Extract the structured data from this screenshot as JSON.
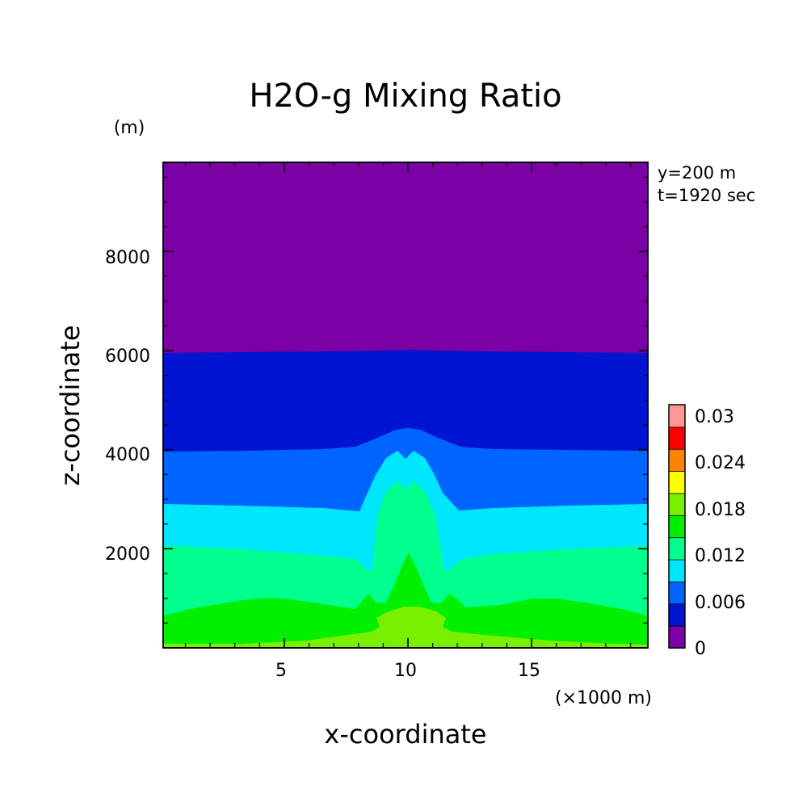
{
  "chart_data": {
    "type": "heatmap",
    "title": "H2O-g Mixing Ratio",
    "xlabel": "x-coordinate",
    "ylabel": "z-coordinate",
    "x_unit": "(×1000 m)",
    "y_unit": "(m)",
    "annotations": [
      "y=200 m",
      "t=1920 sec"
    ],
    "xlim": [
      0.1,
      19.7
    ],
    "ylim": [
      0,
      9800
    ],
    "x_ticks": [
      5,
      10,
      15
    ],
    "x_tick_labels": [
      "5",
      "10",
      "15"
    ],
    "y_ticks": [
      2000,
      4000,
      6000,
      8000
    ],
    "y_tick_labels": [
      "2000",
      "4000",
      "6000",
      "8000"
    ],
    "colorbar": {
      "levels": [
        0,
        0.003,
        0.006,
        0.009,
        0.012,
        0.015,
        0.018,
        0.021,
        0.024,
        0.027,
        0.03,
        0.033
      ],
      "colors": [
        "#7b00a5",
        "#0014d2",
        "#0064ff",
        "#00e6ff",
        "#00ff8c",
        "#00f000",
        "#78f000",
        "#ffff00",
        "#ff8200",
        "#ff0000",
        "#ff9696"
      ],
      "tick_values": [
        0,
        0.006,
        0.012,
        0.018,
        0.024,
        0.03
      ],
      "tick_labels": [
        "0",
        "0.006",
        "0.012",
        "0.018",
        "0.024",
        "0.03"
      ]
    },
    "contour_bands": [
      {
        "range": [
          0,
          0.003
        ],
        "color": "#7b00a5",
        "z_lower_edge_m": 6050
      },
      {
        "range": [
          0.003,
          0.006
        ],
        "color": "#0014d2",
        "z_lower_edge_m": 4000,
        "peak_x": 10.2,
        "peak_z_m": 4500
      },
      {
        "range": [
          0.006,
          0.009
        ],
        "color": "#0064ff",
        "z_lower_edge_m": 2950
      },
      {
        "range": [
          0.009,
          0.012
        ],
        "color": "#00e6ff",
        "z_lower_edge_m": 2100,
        "peak_z_m": 4100
      },
      {
        "range": [
          0.012,
          0.015
        ],
        "color": "#00ff8c",
        "z_lower_edge_m": 950,
        "peak_z_m": 3500
      },
      {
        "range": [
          0.015,
          0.018
        ],
        "color": "#00f000",
        "z_lower_edge_m": 100,
        "peak_z_m": 2000
      },
      {
        "range": [
          0.018,
          0.021
        ],
        "color": "#78f000",
        "z_lower_edge_m": 0,
        "peak_z_m": 900
      }
    ],
    "grid": false,
    "legend": "right colorbar"
  }
}
